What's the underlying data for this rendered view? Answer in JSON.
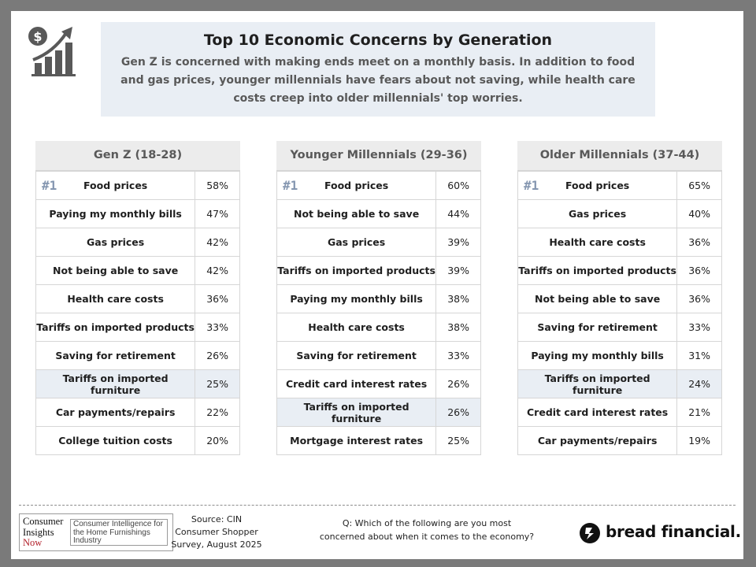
{
  "header": {
    "title": "Top 10 Economic Concerns by Generation",
    "subtitle": "Gen Z is concerned with making ends meet on a monthly basis. In addition to food and gas prices, younger millennials have fears about not saving, while health care costs creep into older millennials' top worries.",
    "icon": "dollar-growth-chart-icon"
  },
  "colors": {
    "header_bg": "#e9eef4",
    "highlight_row": "#e9eef4",
    "rank_badge": "#8496b0",
    "column_header_bg": "#ececec"
  },
  "rank_badge": "#1",
  "generations": [
    {
      "name": "Gen Z (18-28)",
      "rows": [
        {
          "concern": "Food prices",
          "pct": "58%"
        },
        {
          "concern": "Paying my monthly bills",
          "pct": "47%"
        },
        {
          "concern": "Gas prices",
          "pct": "42%"
        },
        {
          "concern": "Not being able to save",
          "pct": "42%"
        },
        {
          "concern": "Health care costs",
          "pct": "36%"
        },
        {
          "concern": "Tariffs on imported products",
          "pct": "33%"
        },
        {
          "concern": "Saving for retirement",
          "pct": "26%"
        },
        {
          "concern": "Tariffs on imported furniture",
          "pct": "25%",
          "highlight": true
        },
        {
          "concern": "Car payments/repairs",
          "pct": "22%"
        },
        {
          "concern": "College tuition costs",
          "pct": "20%"
        }
      ]
    },
    {
      "name": "Younger Millennials (29-36)",
      "rows": [
        {
          "concern": "Food prices",
          "pct": "60%"
        },
        {
          "concern": "Not being able to save",
          "pct": "44%"
        },
        {
          "concern": "Gas prices",
          "pct": "39%"
        },
        {
          "concern": "Tariffs on imported products",
          "pct": "39%"
        },
        {
          "concern": "Paying my monthly bills",
          "pct": "38%"
        },
        {
          "concern": "Health care costs",
          "pct": "38%"
        },
        {
          "concern": "Saving for retirement",
          "pct": "33%"
        },
        {
          "concern": "Credit card interest rates",
          "pct": "26%"
        },
        {
          "concern": "Tariffs on imported furniture",
          "pct": "26%",
          "highlight": true
        },
        {
          "concern": "Mortgage interest rates",
          "pct": "25%"
        }
      ]
    },
    {
      "name": "Older Millennials (37-44)",
      "rows": [
        {
          "concern": "Food prices",
          "pct": "65%"
        },
        {
          "concern": "Gas prices",
          "pct": "40%"
        },
        {
          "concern": "Health care costs",
          "pct": "36%"
        },
        {
          "concern": "Tariffs on imported products",
          "pct": "36%"
        },
        {
          "concern": "Not being able to save",
          "pct": "36%"
        },
        {
          "concern": "Saving for retirement",
          "pct": "33%"
        },
        {
          "concern": "Paying my monthly bills",
          "pct": "31%"
        },
        {
          "concern": "Tariffs on imported furniture",
          "pct": "24%",
          "highlight": true
        },
        {
          "concern": "Credit card interest rates",
          "pct": "21%"
        },
        {
          "concern": "Car payments/repairs",
          "pct": "19%"
        }
      ]
    }
  ],
  "footer": {
    "cin_logo": {
      "line1": "Consumer",
      "line2": "Insights",
      "line3": "Now",
      "tagline": "Consumer Intelligence for the Home Furnishings Industry"
    },
    "source_lines": [
      "Source: CIN",
      "Consumer Shopper",
      "Survey, August 2025"
    ],
    "question_lines": [
      "Q: Which of the following are you most",
      "concerned about when it comes to the economy?"
    ],
    "brand": "bread financial."
  }
}
